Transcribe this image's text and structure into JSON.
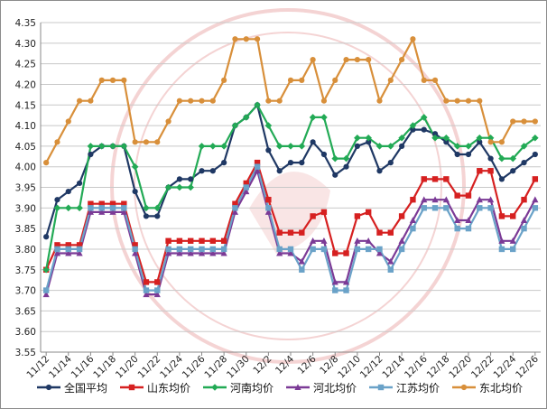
{
  "chart_data": {
    "type": "line",
    "ylim": [
      3.55,
      4.35
    ],
    "ytick_step": 0.05,
    "grid": true,
    "legend_position": "bottom",
    "x": [
      "11/12",
      "11/13",
      "11/14",
      "11/15",
      "11/16",
      "11/17",
      "11/18",
      "11/19",
      "11/20",
      "11/21",
      "11/22",
      "11/23",
      "11/24",
      "11/25",
      "11/26",
      "11/27",
      "11/28",
      "11/29",
      "11/30",
      "12/1",
      "12/2",
      "12/3",
      "12/4",
      "12/5",
      "12/6",
      "12/7",
      "12/8",
      "12/9",
      "12/10",
      "12/11",
      "12/12",
      "12/13",
      "12/14",
      "12/15",
      "12/16",
      "12/17",
      "12/18",
      "12/19",
      "12/20",
      "12/21",
      "12/22",
      "12/23",
      "12/24",
      "12/25",
      "12/26"
    ],
    "x_tick_labels": [
      "11/12",
      "11/14",
      "11/16",
      "11/18",
      "11/20",
      "11/22",
      "11/24",
      "11/26",
      "11/28",
      "11/30",
      "12/2",
      "12/4",
      "12/6",
      "12/8",
      "12/10",
      "12/12",
      "12/14",
      "12/16",
      "12/18",
      "12/20",
      "12/22",
      "12/24",
      "12/26"
    ],
    "x_tick_label_every": 2,
    "series": [
      {
        "name": "全国平均",
        "color": "#1f3864",
        "marker": "circle",
        "values": [
          3.83,
          3.92,
          3.94,
          3.96,
          4.03,
          4.05,
          4.05,
          4.05,
          3.94,
          3.88,
          3.88,
          3.95,
          3.97,
          3.97,
          3.99,
          3.99,
          4.01,
          4.1,
          4.12,
          4.15,
          4.04,
          3.99,
          4.01,
          4.01,
          4.06,
          4.03,
          3.98,
          4.0,
          4.05,
          4.06,
          3.99,
          4.01,
          4.05,
          4.09,
          4.09,
          4.08,
          4.06,
          4.03,
          4.03,
          4.06,
          4.02,
          3.97,
          3.99,
          4.01,
          4.03
        ]
      },
      {
        "name": "山东均价",
        "color": "#d62020",
        "marker": "square",
        "values": [
          3.75,
          3.81,
          3.81,
          3.81,
          3.91,
          3.91,
          3.91,
          3.91,
          3.81,
          3.72,
          3.72,
          3.82,
          3.82,
          3.82,
          3.82,
          3.82,
          3.82,
          3.91,
          3.96,
          4.01,
          3.92,
          3.84,
          3.84,
          3.84,
          3.88,
          3.89,
          3.79,
          3.79,
          3.88,
          3.89,
          3.84,
          3.84,
          3.88,
          3.92,
          3.97,
          3.97,
          3.97,
          3.93,
          3.93,
          3.99,
          3.99,
          3.88,
          3.88,
          3.92,
          3.97
        ]
      },
      {
        "name": "河南均价",
        "color": "#22aa55",
        "marker": "diamond",
        "values": [
          3.75,
          3.9,
          3.9,
          3.9,
          4.05,
          4.05,
          4.05,
          4.05,
          4.0,
          3.9,
          3.9,
          3.95,
          3.95,
          3.95,
          4.05,
          4.05,
          4.05,
          4.1,
          4.12,
          4.15,
          4.1,
          4.05,
          4.05,
          4.05,
          4.12,
          4.12,
          4.02,
          4.02,
          4.07,
          4.07,
          4.05,
          4.05,
          4.07,
          4.1,
          4.12,
          4.07,
          4.07,
          4.05,
          4.05,
          4.07,
          4.07,
          4.02,
          4.02,
          4.05,
          4.07
        ]
      },
      {
        "name": "河北均价",
        "color": "#7b3a96",
        "marker": "triangle",
        "values": [
          3.69,
          3.79,
          3.79,
          3.79,
          3.89,
          3.89,
          3.89,
          3.89,
          3.79,
          3.69,
          3.69,
          3.79,
          3.79,
          3.79,
          3.79,
          3.79,
          3.79,
          3.89,
          3.94,
          3.99,
          3.89,
          3.79,
          3.79,
          3.77,
          3.82,
          3.82,
          3.72,
          3.72,
          3.82,
          3.82,
          3.79,
          3.77,
          3.82,
          3.87,
          3.92,
          3.92,
          3.92,
          3.87,
          3.87,
          3.92,
          3.92,
          3.82,
          3.82,
          3.87,
          3.92
        ]
      },
      {
        "name": "江苏均价",
        "color": "#6aa2c8",
        "marker": "square",
        "values": [
          3.7,
          3.8,
          3.8,
          3.8,
          3.9,
          3.9,
          3.9,
          3.9,
          3.8,
          3.7,
          3.7,
          3.8,
          3.8,
          3.8,
          3.8,
          3.8,
          3.8,
          3.9,
          3.95,
          4.0,
          3.9,
          3.8,
          3.8,
          3.75,
          3.8,
          3.8,
          3.7,
          3.7,
          3.8,
          3.8,
          3.8,
          3.75,
          3.8,
          3.85,
          3.9,
          3.9,
          3.9,
          3.85,
          3.85,
          3.9,
          3.9,
          3.8,
          3.8,
          3.85,
          3.9
        ]
      },
      {
        "name": "东北均价",
        "color": "#d88f3a",
        "marker": "circle",
        "values": [
          4.01,
          4.06,
          4.11,
          4.16,
          4.16,
          4.21,
          4.21,
          4.21,
          4.06,
          4.06,
          4.06,
          4.11,
          4.16,
          4.16,
          4.16,
          4.16,
          4.21,
          4.31,
          4.31,
          4.31,
          4.16,
          4.16,
          4.21,
          4.21,
          4.26,
          4.16,
          4.21,
          4.26,
          4.26,
          4.26,
          4.16,
          4.21,
          4.26,
          4.31,
          4.21,
          4.21,
          4.16,
          4.16,
          4.16,
          4.16,
          4.06,
          4.06,
          4.11,
          4.11,
          4.11
        ]
      }
    ]
  }
}
